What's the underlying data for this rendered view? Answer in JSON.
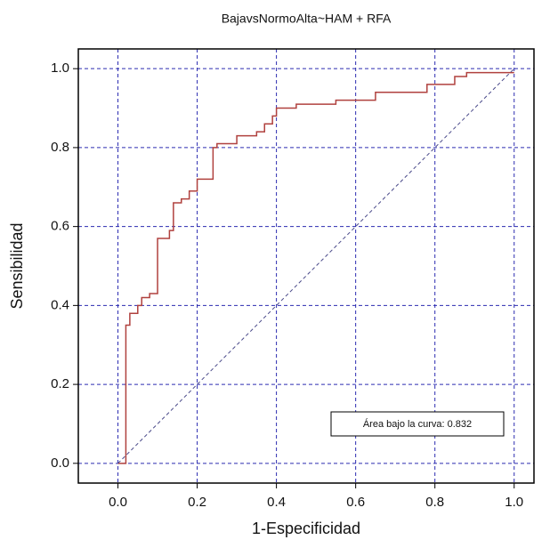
{
  "chart_data": {
    "type": "line",
    "title": "BajavsNormoAlta~HAM + RFA",
    "xlabel": "1-Especificidad",
    "ylabel": "Sensibilidad",
    "annotation": "Área bajo la curva: 0.832",
    "xlim": [
      -0.1,
      1.05
    ],
    "ylim": [
      -0.05,
      1.05
    ],
    "xticks": [
      {
        "value": 0,
        "label": "0.0"
      },
      {
        "value": 0.2,
        "label": "0.2"
      },
      {
        "value": 0.4,
        "label": "0.4"
      },
      {
        "value": 0.6,
        "label": "0.6"
      },
      {
        "value": 0.8,
        "label": "0.8"
      },
      {
        "value": 1,
        "label": "1.0"
      }
    ],
    "yticks": [
      {
        "value": 0,
        "label": "0.0"
      },
      {
        "value": 0.2,
        "label": "0.2"
      },
      {
        "value": 0.4,
        "label": "0.4"
      },
      {
        "value": 0.6,
        "label": "0.6"
      },
      {
        "value": 0.8,
        "label": "0.8"
      },
      {
        "value": 1,
        "label": "1.0"
      }
    ],
    "grid": true,
    "grid_color": "#2b2bb0",
    "series": [
      {
        "color": "#b0413e",
        "style": "solid",
        "x": [
          0,
          0.02,
          0.02,
          0.03,
          0.03,
          0.05,
          0.05,
          0.06,
          0.06,
          0.08,
          0.08,
          0.1,
          0.1,
          0.13,
          0.13,
          0.14,
          0.14,
          0.16,
          0.16,
          0.18,
          0.18,
          0.2,
          0.2,
          0.24,
          0.24,
          0.25,
          0.25,
          0.3,
          0.3,
          0.35,
          0.35,
          0.37,
          0.37,
          0.39,
          0.39,
          0.4,
          0.4,
          0.45,
          0.45,
          0.55,
          0.55,
          0.65,
          0.65,
          0.78,
          0.78,
          0.85,
          0.85,
          0.88,
          0.88,
          1.0
        ],
        "values": [
          0,
          0,
          0.35,
          0.35,
          0.38,
          0.38,
          0.4,
          0.4,
          0.42,
          0.42,
          0.43,
          0.43,
          0.57,
          0.57,
          0.59,
          0.59,
          0.66,
          0.66,
          0.67,
          0.67,
          0.69,
          0.69,
          0.72,
          0.72,
          0.8,
          0.8,
          0.81,
          0.81,
          0.83,
          0.83,
          0.84,
          0.84,
          0.86,
          0.86,
          0.88,
          0.88,
          0.9,
          0.9,
          0.91,
          0.91,
          0.92,
          0.92,
          0.94,
          0.94,
          0.96,
          0.96,
          0.98,
          0.98,
          0.99,
          0.99
        ]
      },
      {
        "color": "#4a4a8a",
        "style": "dashed",
        "x": [
          0,
          1
        ],
        "values": [
          0,
          1
        ]
      }
    ]
  }
}
